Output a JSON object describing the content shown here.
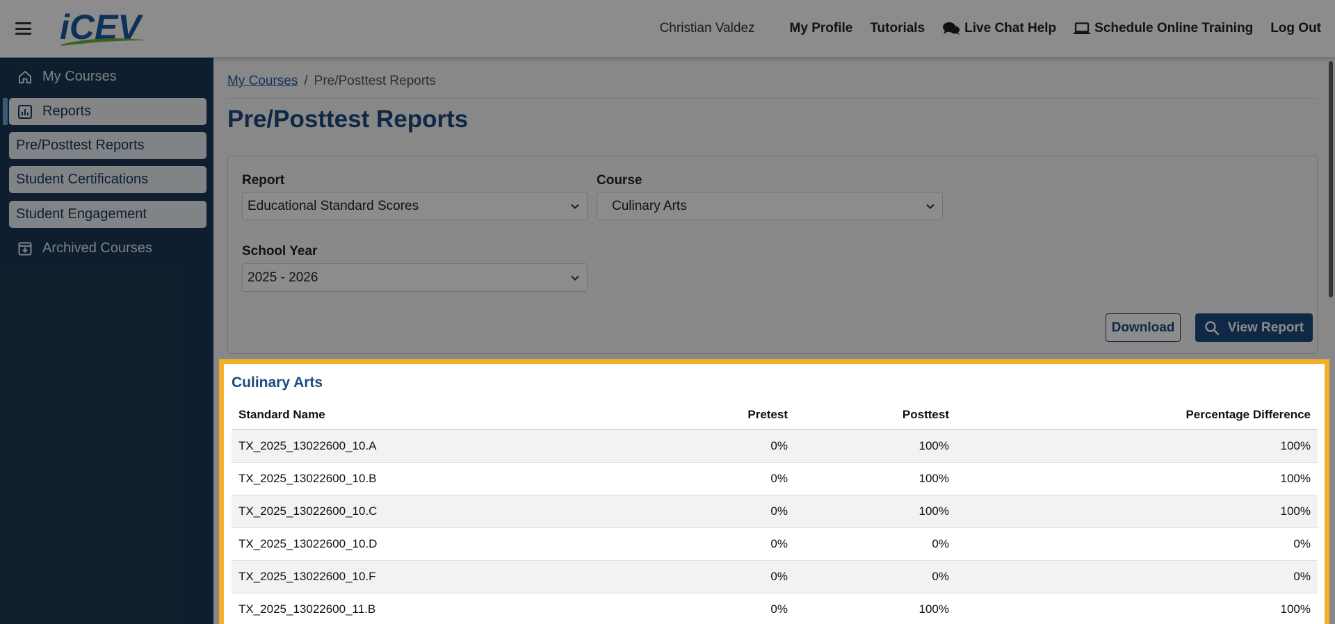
{
  "header": {
    "brand": "iCEV",
    "user_name": "Christian Valdez",
    "nav": [
      {
        "label": "My Profile",
        "icon": ""
      },
      {
        "label": "Tutorials",
        "icon": ""
      },
      {
        "label": "Live Chat Help",
        "icon": "chat-bubbles-icon"
      },
      {
        "label": "Schedule Online Training",
        "icon": "laptop-icon"
      },
      {
        "label": "Log Out",
        "icon": ""
      }
    ]
  },
  "sidebar": {
    "items": [
      {
        "label": "My Courses",
        "icon": "home-icon"
      },
      {
        "label": "Reports",
        "icon": "chart-icon"
      },
      {
        "label": "Pre/Posttest Reports"
      },
      {
        "label": "Student Certifications"
      },
      {
        "label": "Student Engagement"
      },
      {
        "label": "Archived Courses",
        "icon": "archive-icon"
      }
    ]
  },
  "breadcrumb": {
    "link": "My Courses",
    "separator": "/",
    "current": "Pre/Posttest Reports"
  },
  "page": {
    "title": "Pre/Posttest Reports"
  },
  "filters": {
    "report_label": "Report",
    "report_value": "Educational Standard Scores",
    "course_label": "Course",
    "course_value": "Culinary Arts",
    "school_year_label": "School Year",
    "school_year_value": "2025 - 2026",
    "download_label": "Download",
    "view_report_label": "View Report"
  },
  "results": {
    "title": "Culinary Arts",
    "columns": [
      "Standard Name",
      "Pretest",
      "Posttest",
      "Percentage Difference"
    ],
    "rows": [
      [
        "TX_2025_13022600_10.A",
        "0%",
        "100%",
        "100%"
      ],
      [
        "TX_2025_13022600_10.B",
        "0%",
        "100%",
        "100%"
      ],
      [
        "TX_2025_13022600_10.C",
        "0%",
        "100%",
        "100%"
      ],
      [
        "TX_2025_13022600_10.D",
        "0%",
        "0%",
        "0%"
      ],
      [
        "TX_2025_13022600_10.F",
        "0%",
        "0%",
        "0%"
      ],
      [
        "TX_2025_13022600_11.B",
        "0%",
        "100%",
        "100%"
      ]
    ]
  },
  "colors": {
    "navy": "#1a3854",
    "brand_blue": "#1a4a7e",
    "highlight": "#f4b02a",
    "logo_green": "#6cb33f"
  }
}
